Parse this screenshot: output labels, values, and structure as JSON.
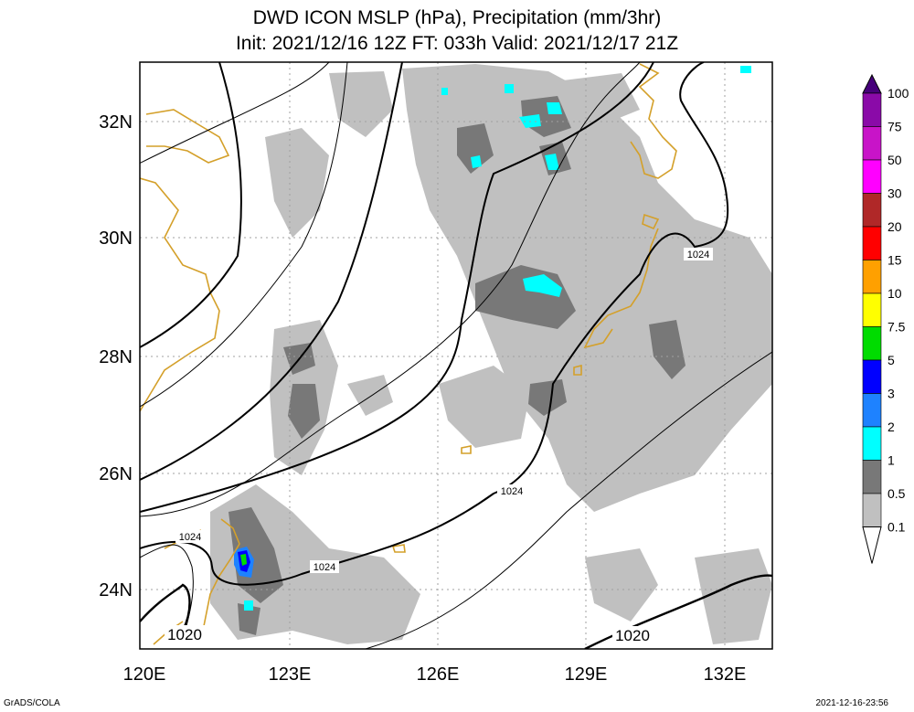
{
  "header": {
    "title_line1": "DWD ICON MSLP (hPa), Precipitation (mm/3hr)",
    "title_line2": "Init: 2021/12/16 12Z  FT: 033h  Valid: 2021/12/17 21Z"
  },
  "map": {
    "lon_labels": [
      "120E",
      "123E",
      "126E",
      "129E",
      "132E"
    ],
    "lat_labels": [
      "24N",
      "26N",
      "28N",
      "30N",
      "32N"
    ],
    "contour_labels": [
      "1024",
      "1024",
      "1024",
      "1024",
      "1020",
      "1020"
    ],
    "colors": {
      "coastline": "#d4a02a",
      "isobar": "#000000",
      "grid": "#a0a0a0"
    }
  },
  "colorbar": {
    "labels": [
      "100",
      "75",
      "50",
      "30",
      "20",
      "15",
      "10",
      "7.5",
      "5",
      "3",
      "2",
      "1",
      "0.5",
      "0.1"
    ],
    "colors": [
      "#46007a",
      "#8a0aa8",
      "#c814c8",
      "#ff00ff",
      "#b02828",
      "#ff0000",
      "#ffa000",
      "#ffff00",
      "#00dc00",
      "#0000ff",
      "#1e82ff",
      "#00ffff",
      "#787878",
      "#c0c0c0",
      "#ffffff"
    ]
  },
  "footer": {
    "left": "GrADS/COLA",
    "right": "2021-12-16-23:56"
  }
}
